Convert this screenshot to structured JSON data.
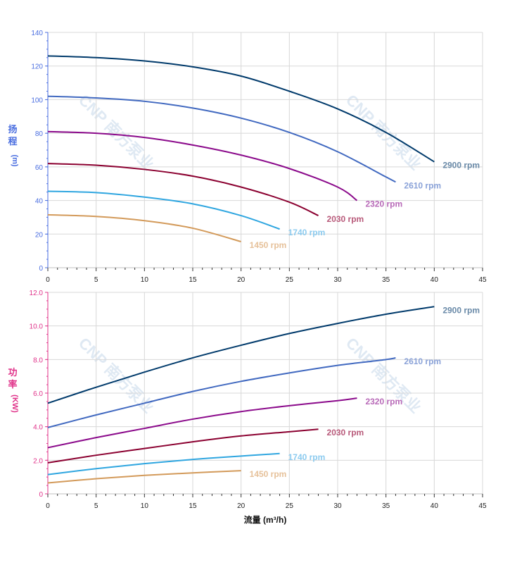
{
  "chart_data": [
    {
      "type": "line",
      "ylabel_lines": [
        "扬",
        "程",
        "(m)"
      ],
      "xlabel": "",
      "xlim": [
        0,
        45
      ],
      "ylim": [
        0,
        140
      ],
      "x_ticks": [
        0,
        5,
        10,
        15,
        20,
        25,
        30,
        35,
        40,
        45
      ],
      "y_ticks": [
        "0",
        "20",
        "40",
        "60",
        "80",
        "100",
        "120",
        "140"
      ],
      "y_tick_values": [
        0,
        20,
        40,
        60,
        80,
        100,
        120,
        140
      ],
      "tick_color": "#4a6ee0",
      "grid": true,
      "series": [
        {
          "name": "2900 rpm",
          "color": "#003a6b",
          "label_color": "#6a8aa8",
          "x": [
            0,
            5,
            10,
            15,
            20,
            25,
            30,
            35,
            40
          ],
          "y": [
            126,
            125,
            123,
            119.5,
            114,
            105,
            94.5,
            80.5,
            63
          ]
        },
        {
          "name": "2610 rpm",
          "color": "#4169c0",
          "label_color": "#8aa2d8",
          "x": [
            0,
            5,
            10,
            15,
            20,
            25,
            30,
            35,
            36
          ],
          "y": [
            102,
            101,
            99,
            95,
            89,
            80.5,
            69,
            54,
            51
          ]
        },
        {
          "name": "2320 rpm",
          "color": "#8b0a8b",
          "label_color": "#b86ab8",
          "x": [
            0,
            5,
            10,
            15,
            20,
            25,
            30,
            32
          ],
          "y": [
            81,
            80,
            77.5,
            73,
            67,
            59,
            48,
            40
          ]
        },
        {
          "name": "2030 rpm",
          "color": "#8b0030",
          "label_color": "#b85a7a",
          "x": [
            0,
            5,
            10,
            15,
            20,
            25,
            28
          ],
          "y": [
            62,
            61,
            58.5,
            54.5,
            48,
            39,
            31
          ]
        },
        {
          "name": "1740 rpm",
          "color": "#2fa6e0",
          "label_color": "#8ccbef",
          "x": [
            0,
            5,
            10,
            15,
            20,
            24
          ],
          "y": [
            45.5,
            44.7,
            42,
            38,
            31,
            23
          ]
        },
        {
          "name": "1450 rpm",
          "color": "#d39a5a",
          "label_color": "#e6c19a",
          "x": [
            0,
            5,
            10,
            15,
            20
          ],
          "y": [
            31.5,
            30.5,
            28,
            23.5,
            15.5
          ]
        }
      ]
    },
    {
      "type": "line",
      "ylabel_lines": [
        "功",
        "率",
        "(KW)"
      ],
      "xlabel": "流量 (m³/h)",
      "xlim": [
        0,
        45
      ],
      "ylim": [
        0,
        12
      ],
      "x_ticks": [
        0,
        5,
        10,
        15,
        20,
        25,
        30,
        35,
        40,
        45
      ],
      "y_ticks": [
        "0",
        "2.0",
        "4.0",
        "6.0",
        "8.0",
        "10.0",
        "12.0"
      ],
      "y_tick_values": [
        0,
        2,
        4,
        6,
        8,
        10,
        12
      ],
      "tick_color": "#e0338a",
      "grid": true,
      "series": [
        {
          "name": "2900 rpm",
          "color": "#003a6b",
          "label_color": "#6a8aa8",
          "x": [
            0,
            5,
            10,
            15,
            20,
            25,
            30,
            35,
            40
          ],
          "y": [
            5.4,
            6.35,
            7.25,
            8.1,
            8.85,
            9.55,
            10.15,
            10.7,
            11.15
          ]
        },
        {
          "name": "2610 rpm",
          "color": "#4169c0",
          "label_color": "#8aa2d8",
          "x": [
            0,
            5,
            10,
            15,
            20,
            25,
            30,
            35,
            36
          ],
          "y": [
            3.95,
            4.7,
            5.4,
            6.1,
            6.7,
            7.2,
            7.65,
            8.0,
            8.1
          ]
        },
        {
          "name": "2320 rpm",
          "color": "#8b0a8b",
          "label_color": "#b86ab8",
          "x": [
            0,
            5,
            10,
            15,
            20,
            25,
            30,
            32
          ],
          "y": [
            2.75,
            3.35,
            3.9,
            4.45,
            4.9,
            5.25,
            5.55,
            5.7
          ]
        },
        {
          "name": "2030 rpm",
          "color": "#8b0030",
          "label_color": "#b85a7a",
          "x": [
            0,
            5,
            10,
            15,
            20,
            25,
            28
          ],
          "y": [
            1.85,
            2.3,
            2.7,
            3.1,
            3.45,
            3.7,
            3.85
          ]
        },
        {
          "name": "1740 rpm",
          "color": "#2fa6e0",
          "label_color": "#8ccbef",
          "x": [
            0,
            5,
            10,
            15,
            20,
            24
          ],
          "y": [
            1.15,
            1.5,
            1.8,
            2.05,
            2.25,
            2.4
          ]
        },
        {
          "name": "1450 rpm",
          "color": "#d39a5a",
          "label_color": "#e6c19a",
          "x": [
            0,
            5,
            10,
            15,
            20
          ],
          "y": [
            0.65,
            0.9,
            1.1,
            1.25,
            1.38
          ]
        }
      ]
    }
  ],
  "watermark": "CNP 南方泵业"
}
